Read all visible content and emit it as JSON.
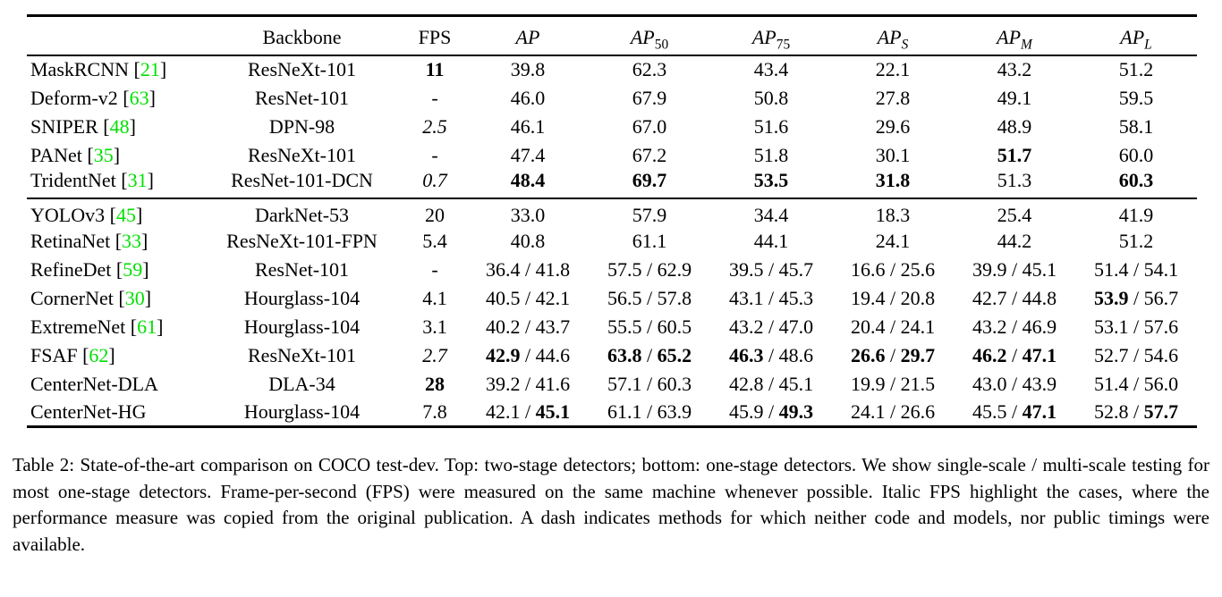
{
  "colors": {
    "background": "#ffffff",
    "text": "#000000",
    "citation": "#00e000"
  },
  "table": {
    "headers": [
      {
        "label": "",
        "name": "col-method"
      },
      {
        "label": "Backbone",
        "name": "col-backbone"
      },
      {
        "label": "FPS",
        "name": "col-fps"
      },
      {
        "label": "AP",
        "math": true,
        "sub": "",
        "name": "col-ap"
      },
      {
        "label": "AP",
        "math": true,
        "sub": "50",
        "name": "col-ap50"
      },
      {
        "label": "AP",
        "math": true,
        "sub": "75",
        "name": "col-ap75"
      },
      {
        "label": "AP",
        "math": true,
        "sub": "S",
        "sub_italic": true,
        "name": "col-ap-s"
      },
      {
        "label": "AP",
        "math": true,
        "sub": "M",
        "sub_italic": true,
        "name": "col-ap-m"
      },
      {
        "label": "AP",
        "math": true,
        "sub": "L",
        "sub_italic": true,
        "name": "col-ap-l"
      }
    ],
    "metric_names": [
      "ap",
      "ap50",
      "ap75",
      "ap-s",
      "ap-m",
      "ap-l"
    ],
    "sections": [
      {
        "name": "two-stage-detectors",
        "rows": [
          {
            "method": "MaskRCNN",
            "cite": "21",
            "backbone": "ResNeXt-101",
            "fps": {
              "text": "11",
              "bold": true
            },
            "metrics": [
              [
                "39.8"
              ],
              [
                "62.3"
              ],
              [
                "43.4"
              ],
              [
                "22.1"
              ],
              [
                "43.2"
              ],
              [
                "51.2"
              ]
            ]
          },
          {
            "method": "Deform-v2",
            "cite": "63",
            "backbone": "ResNet-101",
            "fps": "-",
            "metrics": [
              [
                "46.0"
              ],
              [
                "67.9"
              ],
              [
                "50.8"
              ],
              [
                "27.8"
              ],
              [
                "49.1"
              ],
              [
                "59.5"
              ]
            ]
          },
          {
            "method": "SNIPER",
            "cite": "48",
            "backbone": "DPN-98",
            "fps": {
              "text": "2.5",
              "italic": true
            },
            "metrics": [
              [
                "46.1"
              ],
              [
                "67.0"
              ],
              [
                "51.6"
              ],
              [
                "29.6"
              ],
              [
                "48.9"
              ],
              [
                "58.1"
              ]
            ]
          },
          {
            "method": "PANet",
            "cite": "35",
            "backbone": "ResNeXt-101",
            "fps": "-",
            "metrics": [
              [
                "47.4"
              ],
              [
                "67.2"
              ],
              [
                "51.8"
              ],
              [
                "30.1"
              ],
              [
                {
                  "text": "51.7",
                  "bold": true
                }
              ],
              [
                "60.0"
              ]
            ]
          },
          {
            "method": "TridentNet",
            "cite": "31",
            "backbone": "ResNet-101-DCN",
            "fps": {
              "text": "0.7",
              "italic": true
            },
            "metrics": [
              [
                {
                  "text": "48.4",
                  "bold": true
                }
              ],
              [
                {
                  "text": "69.7",
                  "bold": true
                }
              ],
              [
                {
                  "text": "53.5",
                  "bold": true
                }
              ],
              [
                {
                  "text": "31.8",
                  "bold": true
                }
              ],
              [
                "51.3"
              ],
              [
                {
                  "text": "60.3",
                  "bold": true
                }
              ]
            ]
          }
        ]
      },
      {
        "name": "one-stage-detectors",
        "rows": [
          {
            "method": "YOLOv3",
            "cite": "45",
            "backbone": "DarkNet-53",
            "fps": "20",
            "metrics": [
              [
                "33.0"
              ],
              [
                "57.9"
              ],
              [
                "34.4"
              ],
              [
                "18.3"
              ],
              [
                "25.4"
              ],
              [
                "41.9"
              ]
            ]
          },
          {
            "method": "RetinaNet",
            "cite": "33",
            "backbone": "ResNeXt-101-FPN",
            "fps": "5.4",
            "metrics": [
              [
                "40.8"
              ],
              [
                "61.1"
              ],
              [
                "44.1"
              ],
              [
                "24.1"
              ],
              [
                "44.2"
              ],
              [
                "51.2"
              ]
            ]
          },
          {
            "method": "RefineDet",
            "cite": "59",
            "backbone": "ResNet-101",
            "fps": "-",
            "metrics": [
              [
                "36.4",
                "41.8"
              ],
              [
                "57.5",
                "62.9"
              ],
              [
                "39.5",
                "45.7"
              ],
              [
                "16.6",
                "25.6"
              ],
              [
                "39.9",
                "45.1"
              ],
              [
                "51.4",
                "54.1"
              ]
            ]
          },
          {
            "method": "CornerNet",
            "cite": "30",
            "backbone": "Hourglass-104",
            "fps": "4.1",
            "metrics": [
              [
                "40.5",
                "42.1"
              ],
              [
                "56.5",
                "57.8"
              ],
              [
                "43.1",
                "45.3"
              ],
              [
                "19.4",
                "20.8"
              ],
              [
                "42.7",
                "44.8"
              ],
              [
                {
                  "text": "53.9",
                  "bold": true
                },
                "56.7"
              ]
            ]
          },
          {
            "method": "ExtremeNet",
            "cite": "61",
            "backbone": "Hourglass-104",
            "fps": "3.1",
            "metrics": [
              [
                "40.2",
                "43.7"
              ],
              [
                "55.5",
                "60.5"
              ],
              [
                "43.2",
                "47.0"
              ],
              [
                "20.4",
                "24.1"
              ],
              [
                "43.2",
                "46.9"
              ],
              [
                "53.1",
                "57.6"
              ]
            ]
          },
          {
            "method": "FSAF",
            "cite": "62",
            "backbone": "ResNeXt-101",
            "fps": {
              "text": "2.7",
              "italic": true
            },
            "metrics": [
              [
                {
                  "text": "42.9",
                  "bold": true
                },
                "44.6"
              ],
              [
                {
                  "text": "63.8",
                  "bold": true
                },
                {
                  "text": "65.2",
                  "bold": true
                }
              ],
              [
                {
                  "text": "46.3",
                  "bold": true
                },
                "48.6"
              ],
              [
                {
                  "text": "26.6",
                  "bold": true
                },
                {
                  "text": "29.7",
                  "bold": true
                }
              ],
              [
                {
                  "text": "46.2",
                  "bold": true
                },
                {
                  "text": "47.1",
                  "bold": true
                }
              ],
              [
                "52.7",
                "54.6"
              ]
            ]
          },
          {
            "method": "CenterNet-DLA",
            "backbone": "DLA-34",
            "fps": {
              "text": "28",
              "bold": true
            },
            "metrics": [
              [
                "39.2",
                "41.6"
              ],
              [
                "57.1",
                "60.3"
              ],
              [
                "42.8",
                "45.1"
              ],
              [
                "19.9",
                "21.5"
              ],
              [
                "43.0",
                "43.9"
              ],
              [
                "51.4",
                "56.0"
              ]
            ]
          },
          {
            "method": "CenterNet-HG",
            "backbone": "Hourglass-104",
            "fps": "7.8",
            "metrics": [
              [
                "42.1",
                {
                  "text": "45.1",
                  "bold": true
                }
              ],
              [
                "61.1",
                "63.9"
              ],
              [
                "45.9",
                {
                  "text": "49.3",
                  "bold": true
                }
              ],
              [
                "24.1",
                "26.6"
              ],
              [
                "45.5",
                {
                  "text": "47.1",
                  "bold": true
                }
              ],
              [
                "52.8",
                {
                  "text": "57.7",
                  "bold": true
                }
              ]
            ]
          }
        ]
      }
    ]
  },
  "caption": {
    "text": "Table 2: State-of-the-art comparison on COCO test-dev. Top: two-stage detectors; bottom: one-stage detectors. We show single-scale / multi-scale testing for most one-stage detectors. Frame-per-second (FPS) were measured on the same machine whenever possible. Italic FPS highlight the cases, where the performance measure was copied from the original publication. A dash indicates methods for which neither code and models, nor public timings were available."
  }
}
